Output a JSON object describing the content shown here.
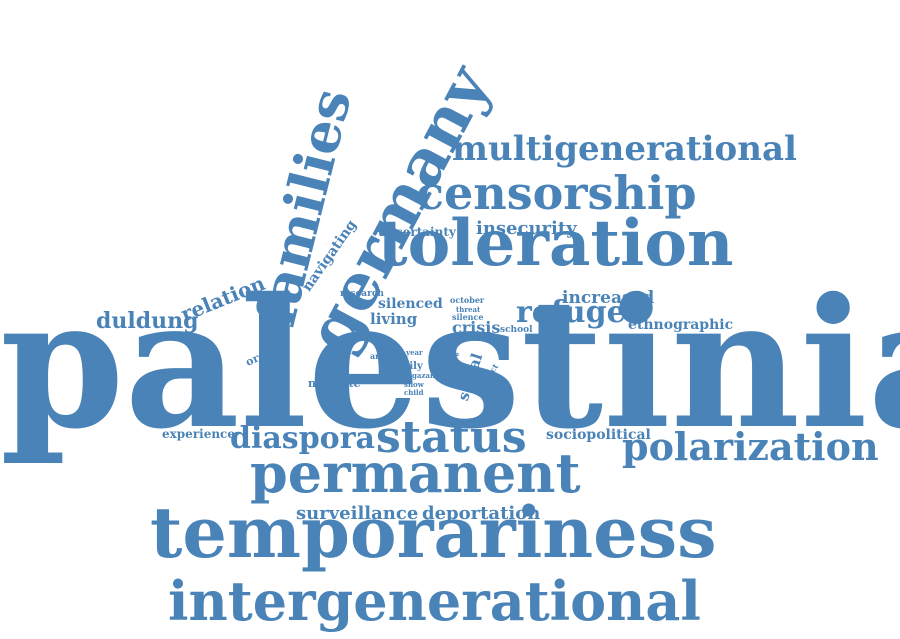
{
  "color": "#4a83b7",
  "words": [
    {
      "id": "palestinian",
      "text": "palestinian"
    },
    {
      "id": "temporariness",
      "text": "temporariness"
    },
    {
      "id": "intergenerational",
      "text": "intergenerational"
    },
    {
      "id": "permanent",
      "text": "permanent"
    },
    {
      "id": "toleration",
      "text": "toleration"
    },
    {
      "id": "germany",
      "text": "germany"
    },
    {
      "id": "families",
      "text": "families"
    },
    {
      "id": "censorship",
      "text": "censorship"
    },
    {
      "id": "multigenerational",
      "text": "multigenerational"
    },
    {
      "id": "status",
      "text": "status"
    },
    {
      "id": "polarization",
      "text": "polarization"
    },
    {
      "id": "diaspora",
      "text": "diaspora"
    },
    {
      "id": "refugee",
      "text": "refugee"
    },
    {
      "id": "surveillance",
      "text": "surveillance"
    },
    {
      "id": "deportation",
      "text": "deportation"
    },
    {
      "id": "duldung",
      "text": "duldung"
    },
    {
      "id": "relation",
      "text": "relation"
    },
    {
      "id": "insecurity",
      "text": "insecurity"
    },
    {
      "id": "increased",
      "text": "increased"
    },
    {
      "id": "ethnographic",
      "text": "ethnographic"
    },
    {
      "id": "sociopolitical",
      "text": "sociopolitical"
    },
    {
      "id": "experience",
      "text": "experience"
    },
    {
      "id": "crisis",
      "text": "crisis"
    },
    {
      "id": "silenced",
      "text": "silenced"
    },
    {
      "id": "living",
      "text": "living"
    },
    {
      "id": "uncertainty",
      "text": "uncertainty"
    },
    {
      "id": "navigating",
      "text": "navigating"
    },
    {
      "id": "social",
      "text": "social"
    },
    {
      "id": "navigate",
      "text": "navigate"
    },
    {
      "id": "ordeal",
      "text": "ordeal"
    },
    {
      "id": "research",
      "text": "research"
    },
    {
      "id": "october",
      "text": "october"
    },
    {
      "id": "threat",
      "text": "threat"
    },
    {
      "id": "silence",
      "text": "silence"
    },
    {
      "id": "school",
      "text": "school"
    },
    {
      "id": "article",
      "text": "article"
    },
    {
      "id": "year",
      "text": "year"
    },
    {
      "id": "family",
      "text": "family"
    },
    {
      "id": "gazan",
      "text": "gazan"
    },
    {
      "id": "show",
      "text": "show"
    },
    {
      "id": "child",
      "text": "child"
    },
    {
      "id": "conflict",
      "text": "conflict"
    },
    {
      "id": "life",
      "text": "life"
    }
  ]
}
